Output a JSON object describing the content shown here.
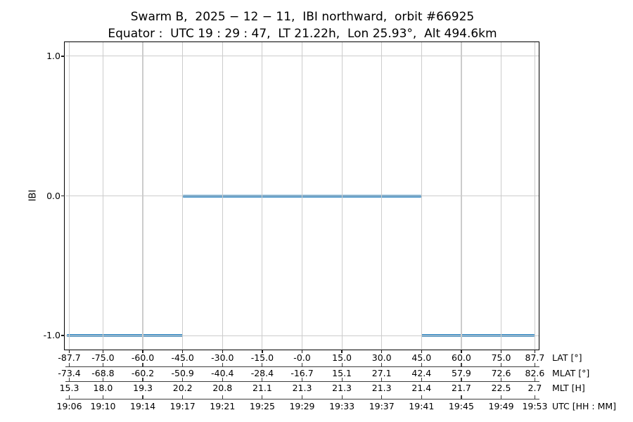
{
  "chart_data": {
    "type": "line",
    "title": "Swarm B,  2025 − 12 − 11,  IBI northward,  orbit #66925",
    "subtitle": "Equator :  UTC 19 : 29 : 47,  LT 21.22h,  Lon 25.93°,  Alt 494.6km",
    "ylabel": "IBI",
    "ylim": [
      -1.1,
      1.1
    ],
    "yticks": [
      {
        "label": "1.0",
        "value": 1.0
      },
      {
        "label": "0.0",
        "value": 0.0
      },
      {
        "label": "-1.0",
        "value": -1.0
      }
    ],
    "xlim_lat": [
      -89.3,
      89.3
    ],
    "grid": true,
    "legend": "none",
    "line_color": "#4d96c8",
    "grid_color": "#cccccc",
    "segments": [
      {
        "ibi": -1.0,
        "lat_from": -88.6,
        "lat_to": -45.0
      },
      {
        "ibi": 0.0,
        "lat_from": -45.0,
        "lat_to": 45.0
      },
      {
        "ibi": -1.0,
        "lat_from": 45.0,
        "lat_to": 87.7
      }
    ],
    "tick_positions_lat": [
      -87.7,
      -75.0,
      -60.0,
      -45.0,
      -30.0,
      -15.0,
      0.0,
      15.0,
      30.0,
      45.0,
      60.0,
      75.0,
      87.7
    ],
    "x_axis_rows": [
      {
        "id": "lat",
        "label": "LAT [°]",
        "values": [
          "-87.7",
          "-75.0",
          "-60.0",
          "-45.0",
          "-30.0",
          "-15.0",
          "-0.0",
          "15.0",
          "30.0",
          "45.0",
          "60.0",
          "75.0",
          "87.7"
        ]
      },
      {
        "id": "mlat",
        "label": "MLAT [°]",
        "values": [
          "-73.4",
          "-68.8",
          "-60.2",
          "-50.9",
          "-40.4",
          "-28.4",
          "-16.7",
          "15.1",
          "27.1",
          "42.4",
          "57.9",
          "72.6",
          "82.6"
        ]
      },
      {
        "id": "mlt",
        "label": "MLT [H]",
        "values": [
          "15.3",
          "18.0",
          "19.3",
          "20.2",
          "20.8",
          "21.1",
          "21.3",
          "21.3",
          "21.3",
          "21.4",
          "21.7",
          "22.5",
          "2.7"
        ]
      },
      {
        "id": "utc",
        "label": "UTC [HH : MM]",
        "values": [
          "19:06",
          "19:10",
          "19:14",
          "19:17",
          "19:21",
          "19:25",
          "19:29",
          "19:33",
          "19:37",
          "19:41",
          "19:45",
          "19:49",
          "19:53"
        ]
      }
    ]
  }
}
